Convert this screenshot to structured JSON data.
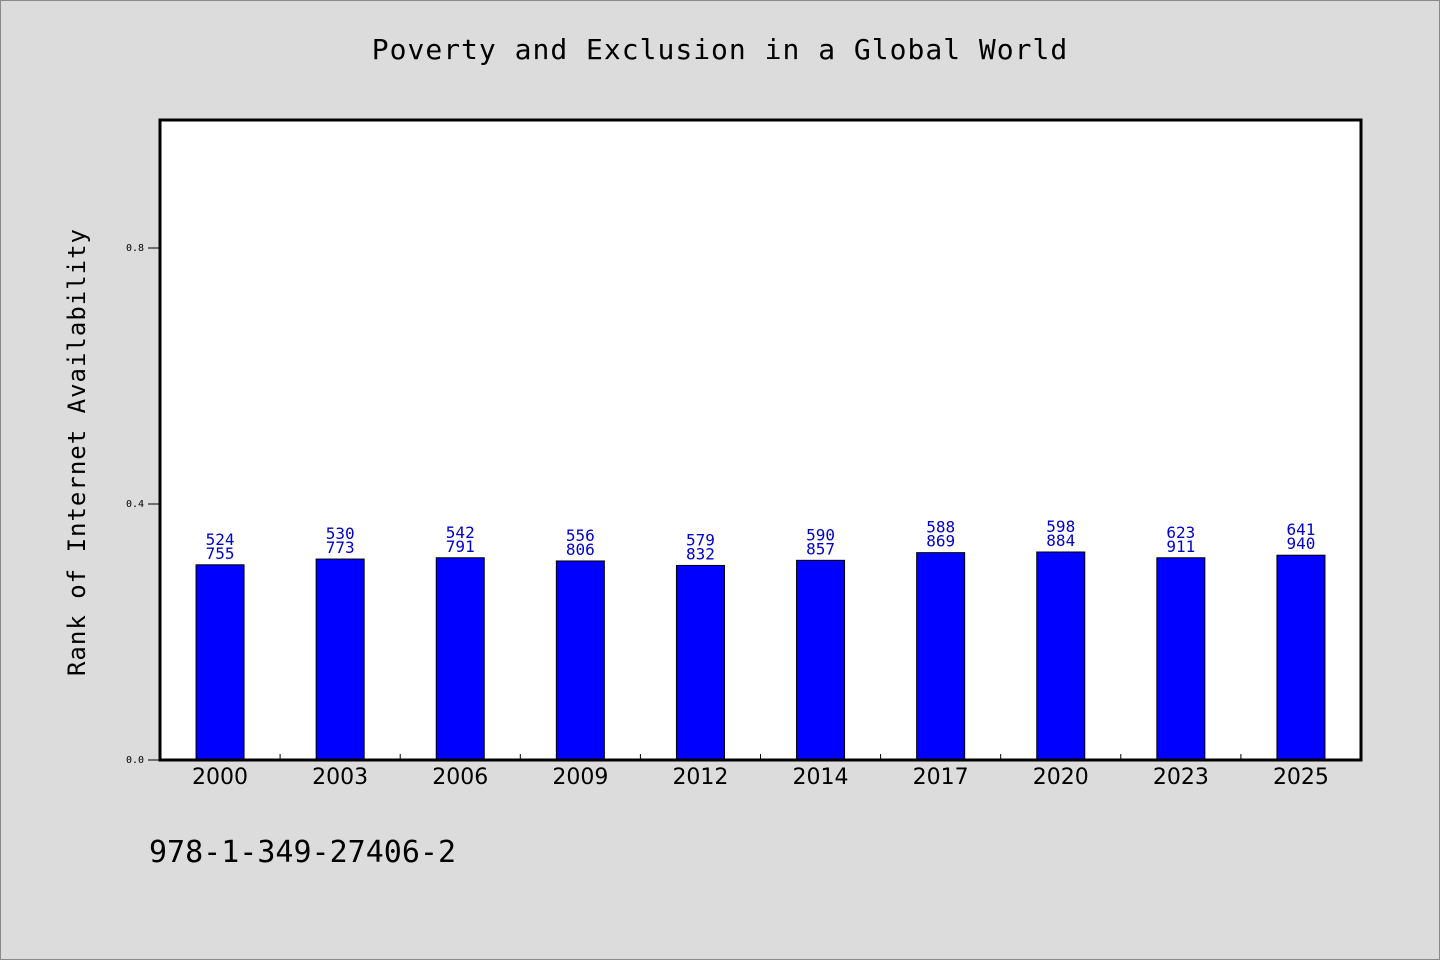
{
  "chart_data": {
    "type": "bar",
    "title": "Poverty and Exclusion in a Global World",
    "ylabel": "Rank of Internet Availability",
    "xlabel": "",
    "categories": [
      "2000",
      "2003",
      "2006",
      "2009",
      "2012",
      "2014",
      "2017",
      "2020",
      "2023",
      "2025"
    ],
    "values": [
      0.305,
      0.314,
      0.316,
      0.311,
      0.304,
      0.312,
      0.324,
      0.325,
      0.316,
      0.32
    ],
    "label_top": [
      "524",
      "530",
      "542",
      "556",
      "579",
      "590",
      "588",
      "598",
      "623",
      "641"
    ],
    "label_bottom": [
      "755",
      "773",
      "791",
      "806",
      "832",
      "857",
      "869",
      "884",
      "911",
      "940"
    ],
    "ylim": [
      0,
      1.0
    ],
    "yticks": [
      0.0,
      0.4,
      0.8
    ],
    "ytick_labels": [
      "0.0",
      "0.4",
      "0.8"
    ],
    "grid": false,
    "bar_color": "#0000ff",
    "label_color": "#0000cc"
  },
  "footer": {
    "code": "978-1-349-27406-2"
  },
  "colors": {
    "background": "#dcdcdc",
    "plot_background": "#ffffff",
    "axis": "#000000"
  }
}
